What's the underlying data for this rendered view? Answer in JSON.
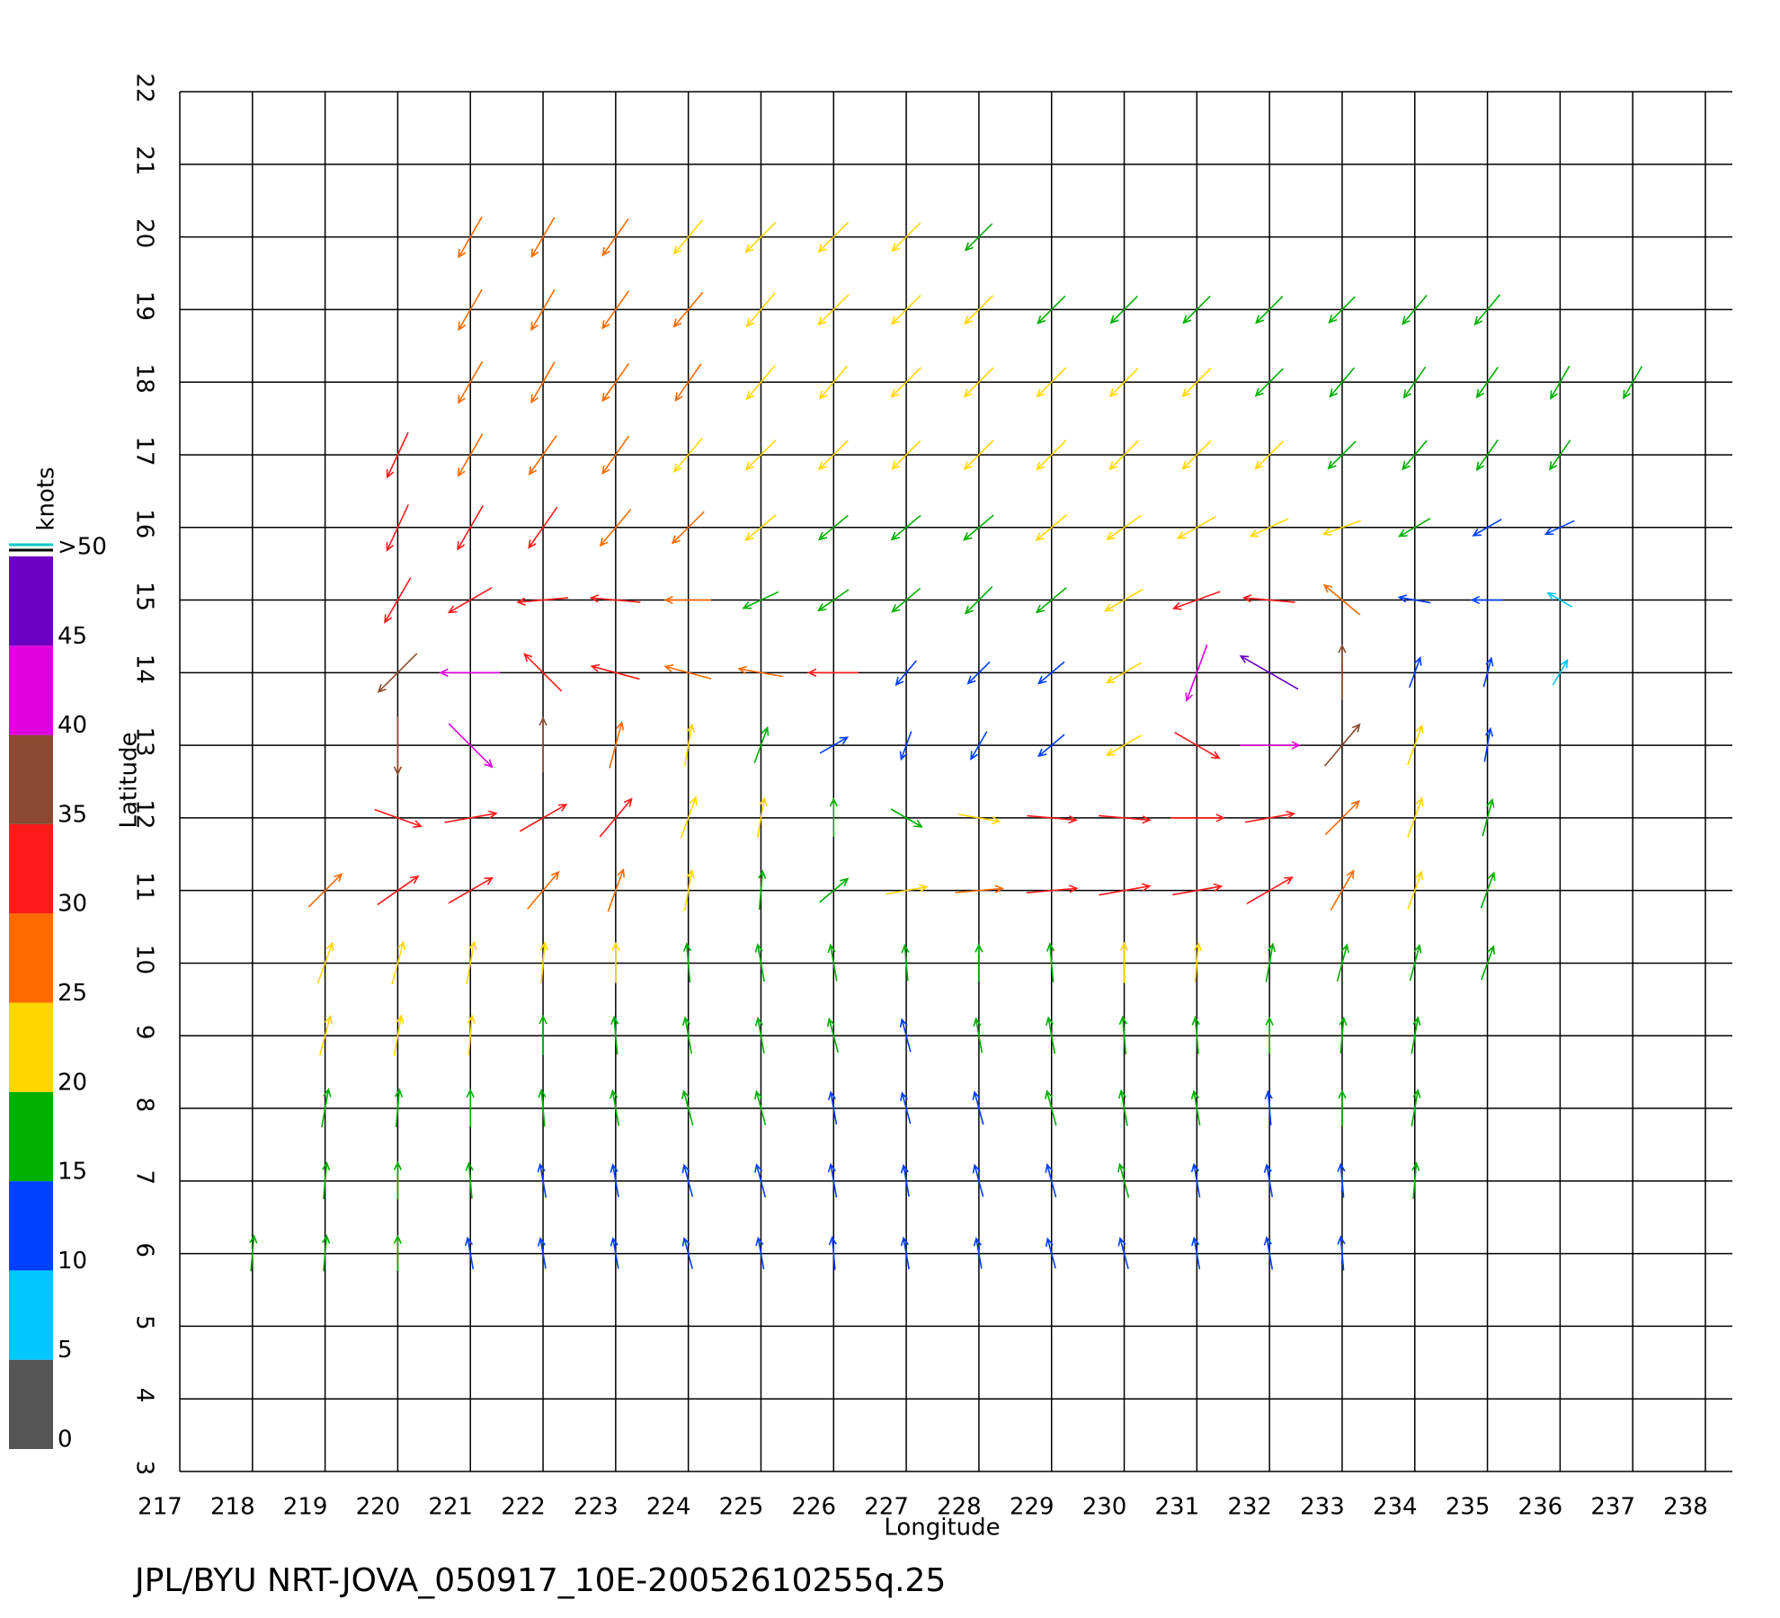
{
  "chart_data": {
    "type": "vector",
    "title": "JPL/BYU NRT-JOVA_050917_10E-20052610255q.25",
    "x_label": "Longitude",
    "y_label": "Latitude",
    "xlim": [
      217,
      238
    ],
    "ylim": [
      3,
      22
    ],
    "xticks": [
      217,
      218,
      219,
      220,
      221,
      222,
      223,
      224,
      225,
      226,
      227,
      228,
      229,
      230,
      231,
      232,
      233,
      234,
      235,
      236,
      237,
      238
    ],
    "yticks": [
      3,
      4,
      5,
      6,
      7,
      8,
      9,
      10,
      11,
      12,
      13,
      14,
      15,
      16,
      17,
      18,
      19,
      20,
      21,
      22
    ],
    "grid": true,
    "colorbar": {
      "title": "knots",
      "ticks": [
        0,
        5,
        10,
        15,
        20,
        25,
        30,
        35,
        40,
        45,
        {
          "value": 50,
          "label": ">50"
        }
      ],
      "colors": [
        "#555555",
        "#00c8ff",
        "#0040ff",
        "#00b000",
        "#ffd700",
        "#ff6a00",
        "#ff1a1a",
        "#8b4a30",
        "#e000e0",
        "#6a00c0"
      ]
    },
    "rows": [
      {
        "lat": 6,
        "lon": [
          218,
          219,
          220,
          221,
          222,
          223,
          224,
          225,
          226,
          227,
          228,
          229,
          230,
          231,
          232,
          233
        ],
        "speed": [
          16,
          16,
          15,
          12,
          11,
          11,
          12,
          12,
          13,
          12,
          11,
          11,
          12,
          12,
          13,
          14
        ],
        "direction": [
          5,
          5,
          0,
          350,
          350,
          350,
          345,
          350,
          355,
          350,
          350,
          345,
          345,
          350,
          350,
          355
        ]
      },
      {
        "lat": 7,
        "lon": [
          219,
          220,
          221,
          222,
          223,
          224,
          225,
          226,
          227,
          228,
          229,
          230,
          231,
          232,
          233,
          234
        ],
        "speed": [
          17,
          17,
          16,
          14,
          13,
          13,
          14,
          14,
          12,
          13,
          14,
          15,
          14,
          13,
          14,
          16
        ],
        "direction": [
          5,
          0,
          355,
          350,
          350,
          345,
          345,
          350,
          350,
          345,
          345,
          345,
          350,
          350,
          355,
          5
        ]
      },
      {
        "lat": 8,
        "lon": [
          219,
          220,
          221,
          222,
          223,
          224,
          225,
          226,
          227,
          228,
          229,
          230,
          231,
          232,
          233,
          234
        ],
        "speed": [
          19,
          18,
          17,
          17,
          16,
          16,
          15,
          13,
          12,
          14,
          16,
          16,
          15,
          14,
          15,
          17
        ],
        "direction": [
          10,
          5,
          0,
          355,
          350,
          345,
          345,
          350,
          345,
          345,
          345,
          350,
          350,
          355,
          0,
          10
        ]
      },
      {
        "lat": 9,
        "lon": [
          219,
          220,
          221,
          222,
          223,
          224,
          225,
          226,
          227,
          228,
          229,
          230,
          231,
          232,
          233,
          234
        ],
        "speed": [
          21,
          21,
          20,
          19,
          18,
          17,
          16,
          15,
          14,
          15,
          17,
          18,
          17,
          16,
          16,
          17
        ],
        "direction": [
          15,
          10,
          5,
          0,
          355,
          350,
          350,
          345,
          345,
          350,
          350,
          355,
          355,
          0,
          5,
          10
        ]
      },
      {
        "lat": 10,
        "lon": [
          219,
          220,
          221,
          222,
          223,
          224,
          225,
          226,
          227,
          228,
          229,
          230,
          231,
          232,
          233,
          234,
          235
        ],
        "speed": [
          23,
          24,
          23,
          21,
          20,
          19,
          18,
          17,
          16,
          17,
          19,
          20,
          20,
          19,
          18,
          17,
          16
        ],
        "direction": [
          20,
          15,
          10,
          5,
          0,
          355,
          350,
          350,
          355,
          0,
          355,
          0,
          5,
          10,
          15,
          15,
          20
        ]
      },
      {
        "lat": 11,
        "lon": [
          219,
          220,
          221,
          222,
          223,
          224,
          225,
          226,
          227,
          228,
          229,
          230,
          231,
          232,
          233,
          234,
          235
        ],
        "speed": [
          27,
          30,
          31,
          29,
          25,
          21,
          19,
          17,
          22,
          28,
          31,
          32,
          30,
          33,
          26,
          20,
          18
        ],
        "direction": [
          45,
          55,
          60,
          40,
          20,
          10,
          5,
          50,
          80,
          85,
          85,
          80,
          80,
          60,
          30,
          20,
          20
        ]
      },
      {
        "lat": 12,
        "lon": [
          220,
          221,
          222,
          223,
          224,
          225,
          226,
          227,
          228,
          229,
          230,
          231,
          232,
          233,
          234,
          235
        ],
        "speed": [
          30,
          33,
          34,
          30,
          24,
          20,
          18,
          16,
          22,
          30,
          32,
          34,
          30,
          28,
          22,
          18
        ],
        "direction": [
          110,
          80,
          60,
          40,
          20,
          10,
          0,
          120,
          100,
          95,
          95,
          90,
          80,
          45,
          20,
          15
        ]
      },
      {
        "lat": 13,
        "lon": [
          220,
          221,
          222,
          223,
          224,
          225,
          226,
          227,
          228,
          229,
          230,
          231,
          232,
          233,
          234,
          235
        ],
        "speed": [
          38,
          42,
          35,
          28,
          22,
          18,
          12,
          10,
          12,
          14,
          20,
          32,
          40,
          35,
          22,
          14
        ],
        "direction": [
          180,
          135,
          0,
          15,
          10,
          20,
          60,
          200,
          210,
          230,
          240,
          120,
          90,
          40,
          20,
          10
        ]
      },
      {
        "lat": 14,
        "lon": [
          220,
          221,
          222,
          223,
          224,
          225,
          226,
          227,
          228,
          229,
          230,
          231,
          232,
          233,
          234,
          235,
          236
        ],
        "speed": [
          35,
          40,
          33,
          30,
          28,
          25,
          30,
          12,
          11,
          14,
          20,
          40,
          47,
          35,
          12,
          10,
          9
        ],
        "direction": [
          225,
          270,
          315,
          285,
          285,
          280,
          270,
          220,
          225,
          230,
          240,
          200,
          300,
          0,
          20,
          15,
          30
        ]
      },
      {
        "lat": 15,
        "lon": [
          220,
          221,
          222,
          223,
          224,
          225,
          226,
          227,
          228,
          229,
          230,
          231,
          232,
          233,
          234,
          235,
          236
        ],
        "speed": [
          32,
          30,
          31,
          30,
          26,
          19,
          17,
          17,
          18,
          19,
          24,
          30,
          32,
          27,
          12,
          11,
          8
        ],
        "direction": [
          210,
          240,
          265,
          275,
          270,
          245,
          235,
          230,
          225,
          230,
          240,
          250,
          275,
          310,
          280,
          270,
          300
        ]
      },
      {
        "lat": 16,
        "lon": [
          220,
          221,
          222,
          223,
          224,
          225,
          226,
          227,
          228,
          229,
          230,
          231,
          232,
          233,
          234,
          235,
          236
        ],
        "speed": [
          31,
          31,
          30,
          28,
          25,
          20,
          18,
          18,
          19,
          20,
          22,
          24,
          22,
          20,
          16,
          13,
          12
        ],
        "direction": [
          205,
          210,
          215,
          220,
          225,
          230,
          230,
          230,
          230,
          230,
          235,
          240,
          245,
          250,
          240,
          240,
          245
        ]
      },
      {
        "lat": 17,
        "lon": [
          220,
          221,
          222,
          223,
          224,
          225,
          226,
          227,
          228,
          229,
          230,
          231,
          232,
          233,
          234,
          235,
          236
        ],
        "speed": [
          30,
          29,
          28,
          26,
          24,
          22,
          21,
          20,
          21,
          22,
          21,
          20,
          20,
          19,
          18,
          17,
          16
        ],
        "direction": [
          205,
          210,
          215,
          215,
          220,
          225,
          225,
          225,
          225,
          225,
          225,
          225,
          225,
          225,
          220,
          215,
          215
        ]
      },
      {
        "lat": 18,
        "lon": [
          221,
          222,
          223,
          224,
          225,
          226,
          227,
          228,
          229,
          230,
          231,
          232,
          233,
          234,
          235,
          236,
          237
        ],
        "speed": [
          28,
          27,
          26,
          25,
          24,
          23,
          22,
          21,
          21,
          20,
          20,
          19,
          18,
          18,
          17,
          18,
          17
        ],
        "direction": [
          210,
          210,
          215,
          215,
          220,
          220,
          225,
          225,
          225,
          225,
          225,
          225,
          220,
          215,
          215,
          210,
          210
        ]
      },
      {
        "lat": 19,
        "lon": [
          221,
          222,
          223,
          224,
          225,
          226,
          227,
          228,
          229,
          230,
          231,
          232,
          233,
          234,
          235
        ],
        "speed": [
          27,
          27,
          26,
          25,
          24,
          23,
          21,
          20,
          19,
          18,
          18,
          18,
          17,
          18,
          19
        ],
        "direction": [
          210,
          210,
          215,
          220,
          220,
          225,
          225,
          225,
          225,
          225,
          225,
          225,
          225,
          220,
          220
        ]
      },
      {
        "lat": 20,
        "lon": [
          221,
          222,
          223,
          224,
          225,
          226,
          227,
          228
        ],
        "speed": [
          27,
          26,
          25,
          24,
          23,
          22,
          20,
          18
        ],
        "direction": [
          210,
          210,
          215,
          220,
          225,
          225,
          225,
          225
        ]
      }
    ]
  }
}
